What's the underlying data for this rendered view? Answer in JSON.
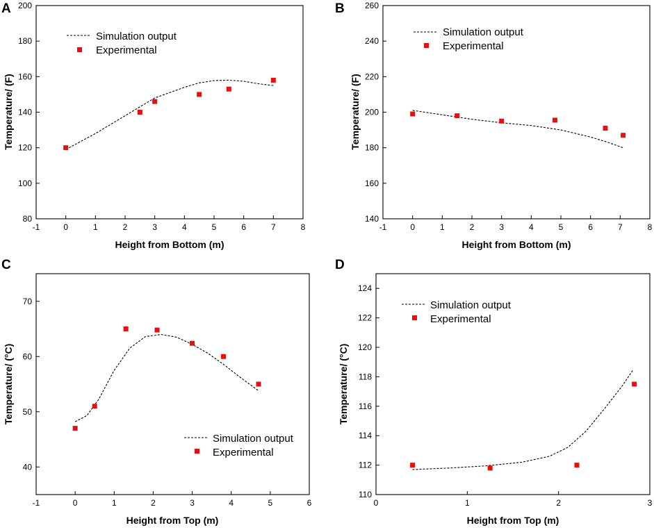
{
  "chart_data": [
    {
      "panel": "A",
      "type": "line",
      "xlabel": "Height from Bottom (m)",
      "ylabel": "Temperature/ (F)",
      "xlim": [
        -1,
        8
      ],
      "ylim": [
        80,
        200
      ],
      "xticks": [
        -1,
        0,
        1,
        2,
        3,
        4,
        5,
        6,
        7,
        8
      ],
      "yticks": [
        80,
        100,
        120,
        140,
        160,
        180,
        200
      ],
      "legend": {
        "position": "top-left",
        "line_label": "Simulation output",
        "marker_label": "Experimental"
      },
      "series": [
        {
          "name": "Simulation output",
          "style": "dashed-line",
          "x": [
            0,
            1,
            2,
            3,
            4,
            4.5,
            5,
            5.5,
            6,
            6.5,
            7
          ],
          "y": [
            119,
            128,
            138,
            148,
            154,
            156.5,
            157.8,
            158,
            157.4,
            156,
            155
          ]
        },
        {
          "name": "Experimental",
          "style": "square-marker",
          "x": [
            0,
            2.5,
            3,
            4.5,
            5.5,
            7
          ],
          "y": [
            120,
            140,
            146,
            150,
            153,
            158
          ]
        }
      ]
    },
    {
      "panel": "B",
      "type": "line",
      "xlabel": "Height from Bottom (m)",
      "ylabel": "Temperature/ (F)",
      "xlim": [
        -1,
        8
      ],
      "ylim": [
        140,
        260
      ],
      "xticks": [
        -1,
        0,
        1,
        2,
        3,
        4,
        5,
        6,
        7,
        8
      ],
      "yticks": [
        140,
        160,
        180,
        200,
        220,
        240,
        260
      ],
      "legend": {
        "position": "top-left",
        "line_label": "Simulation output",
        "marker_label": "Experimental"
      },
      "series": [
        {
          "name": "Simulation output",
          "style": "dashed-line",
          "x": [
            0,
            1,
            2,
            3,
            4,
            5,
            6,
            6.5,
            7.1
          ],
          "y": [
            201,
            198.5,
            196,
            194,
            192.5,
            190,
            186,
            183.5,
            180
          ]
        },
        {
          "name": "Experimental",
          "style": "square-marker",
          "x": [
            0,
            1.5,
            3,
            4.8,
            6.5,
            7.1
          ],
          "y": [
            199,
            198,
            195,
            195.5,
            191,
            187
          ]
        }
      ]
    },
    {
      "panel": "C",
      "type": "line",
      "xlabel": "Height from Top (m)",
      "ylabel": "Temperature/ (°C)",
      "xlim": [
        -1,
        6
      ],
      "ylim": [
        35,
        75
      ],
      "xticks": [
        -1,
        0,
        1,
        2,
        3,
        4,
        5,
        6
      ],
      "yticks": [
        40,
        50,
        60,
        70
      ],
      "legend": {
        "position": "bottom-right",
        "line_label": "Simulation output",
        "marker_label": "Experimental"
      },
      "series": [
        {
          "name": "Simulation output",
          "style": "dashed-line",
          "x": [
            0,
            0.3,
            0.6,
            1.0,
            1.4,
            1.8,
            2.2,
            2.6,
            3.0,
            3.4,
            3.8,
            4.2,
            4.7
          ],
          "y": [
            48.2,
            49.3,
            52.2,
            57.5,
            61.5,
            63.6,
            64.0,
            63.5,
            62.2,
            60.6,
            58.6,
            56.4,
            53.8
          ]
        },
        {
          "name": "Experimental",
          "style": "square-marker",
          "x": [
            0,
            0.5,
            1.3,
            2.1,
            3.0,
            3.8,
            4.7
          ],
          "y": [
            47,
            51,
            65,
            64.8,
            62.4,
            60,
            55
          ]
        }
      ]
    },
    {
      "panel": "D",
      "type": "line",
      "xlabel": "Height from Top (m)",
      "ylabel": "Temperature/ (°C)",
      "xlim": [
        0,
        3
      ],
      "ylim": [
        110,
        125
      ],
      "xticks": [
        0,
        1,
        2,
        3
      ],
      "yticks": [
        110,
        112,
        114,
        116,
        118,
        120,
        122,
        124
      ],
      "legend": {
        "position": "top-left",
        "line_label": "Simulation output",
        "marker_label": "Experimental"
      },
      "series": [
        {
          "name": "Simulation output",
          "style": "dashed-line",
          "x": [
            0.4,
            0.8,
            1.2,
            1.6,
            1.9,
            2.1,
            2.3,
            2.5,
            2.7,
            2.82
          ],
          "y": [
            111.7,
            111.8,
            111.95,
            112.2,
            112.6,
            113.2,
            114.3,
            115.8,
            117.4,
            118.5
          ]
        },
        {
          "name": "Experimental",
          "style": "square-marker",
          "x": [
            0.4,
            1.25,
            2.2,
            2.83
          ],
          "y": [
            112,
            111.8,
            112,
            117.5
          ]
        }
      ]
    }
  ]
}
